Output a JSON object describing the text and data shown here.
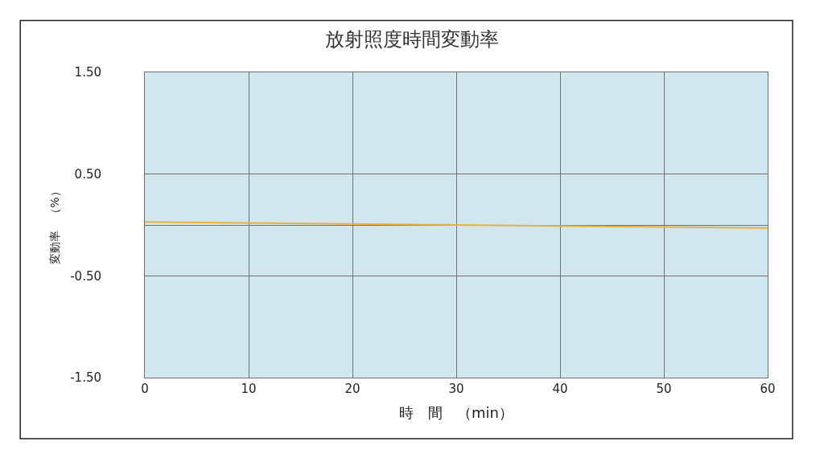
{
  "chart_data": {
    "type": "line",
    "title": "放射照度時間変動率",
    "xlabel": "時　間　（min）",
    "ylabel": "変動率　（%）",
    "x": [
      0,
      10,
      20,
      30,
      40,
      50,
      60
    ],
    "series": [
      {
        "color": "#e8b040",
        "values": [
          0.03,
          0.02,
          0.01,
          0.0,
          -0.01,
          -0.02,
          -0.03
        ]
      }
    ],
    "xlim": [
      0,
      60
    ],
    "xticks": [
      0,
      10,
      20,
      30,
      40,
      50,
      60
    ],
    "ylim": [
      -1.5,
      1.5
    ],
    "yticks": [
      {
        "value": 1.5,
        "label": "1.50"
      },
      {
        "value": 0.5,
        "label": "0.50"
      },
      {
        "value": 0,
        "label": null
      },
      {
        "value": -0.5,
        "label": "-0.50"
      },
      {
        "value": -1.5,
        "label": "-1.50"
      }
    ],
    "grid": true,
    "legend": false,
    "marker": "none",
    "line_style": "solid"
  }
}
